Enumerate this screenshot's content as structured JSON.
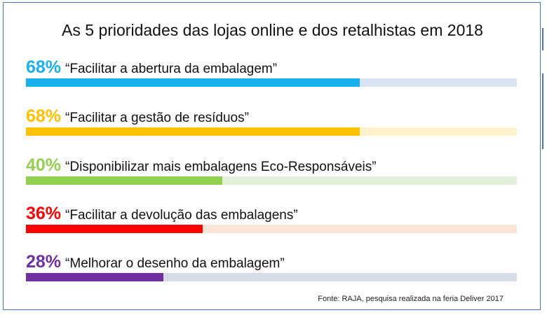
{
  "chart_data": {
    "type": "bar",
    "title": "As 5 prioridades das lojas online e dos retalhistas em 2018",
    "orientation": "horizontal",
    "xlim": [
      0,
      100
    ],
    "bars": [
      {
        "percent_label": "68%",
        "value": 68,
        "label": "“Facilitar a abertura da embalagem”",
        "color": "#17b1ee",
        "track_color": "#dae3f3"
      },
      {
        "percent_label": "68%",
        "value": 68,
        "label": "“Facilitar a gestão de resíduos”",
        "color": "#ffc000",
        "track_color": "#fff2cc"
      },
      {
        "percent_label": "40%",
        "value": 40,
        "label": "“Disponibilizar mais embalagens Eco-Responsáveis”",
        "color": "#92d050",
        "track_color": "#e2efd9"
      },
      {
        "percent_label": "36%",
        "value": 36,
        "label": "“Facilitar a devolução das embalagens”",
        "color": "#ff0000",
        "track_color": "#fbe5d6"
      },
      {
        "percent_label": "28%",
        "value": 28,
        "label": "“Melhorar o desenho da embalagem”",
        "color": "#7030a0",
        "track_color": "#d6dce5"
      }
    ],
    "source": "Fonte: RAJA, pesquisa realizada na feria Deliver 2017"
  }
}
